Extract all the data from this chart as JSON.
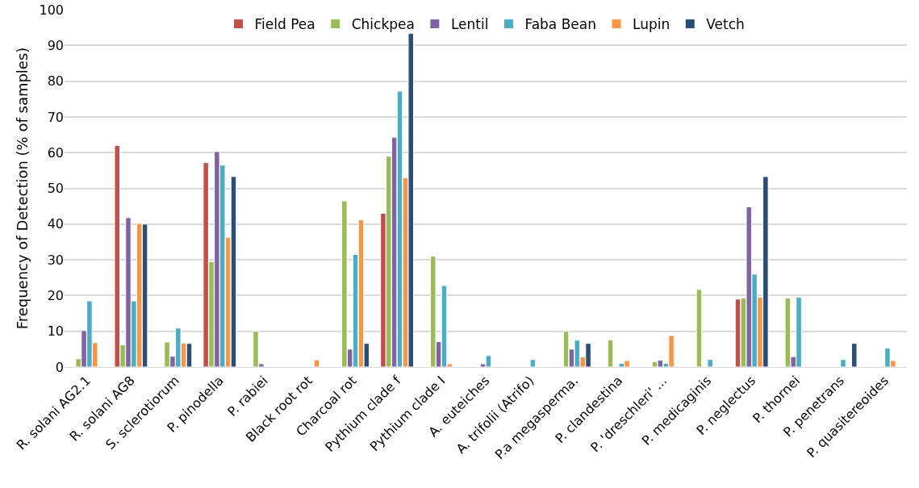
{
  "chart_data": {
    "type": "bar",
    "ylabel": "Frequency of Detection (% of samples)",
    "categories": [
      "R. solani AG2.1",
      "R. solani AG8",
      "S. sclerotiorum",
      "P. pinodella",
      "P. rabiei",
      "Black root rot",
      "Charcoal rot",
      "Pythium clade f",
      "Pythium clade I",
      "A. euteiches",
      "A. trifolii (Atrifo)",
      "P.a megasperma.",
      "P. clandestina",
      "P. 'dreschleri' ...",
      "P. medicaginis",
      "P. neglectus",
      "P. thornei",
      "P. penetrans",
      "P. quasitereoides"
    ],
    "series": [
      {
        "name": "Field Pea",
        "color": "#c0504d",
        "values": [
          null,
          62,
          null,
          57.2,
          null,
          null,
          null,
          43,
          null,
          null,
          null,
          null,
          null,
          null,
          null,
          19,
          null,
          null,
          null
        ]
      },
      {
        "name": "Chickpea",
        "color": "#9bbb59",
        "values": [
          2.3,
          6.2,
          7,
          29.5,
          10,
          null,
          46.5,
          59,
          31,
          null,
          null,
          10,
          7.6,
          1.5,
          21.7,
          19.3,
          19.3,
          null,
          null
        ]
      },
      {
        "name": "Lentil",
        "color": "#8064a2",
        "values": [
          10.2,
          41.8,
          3,
          60.3,
          0.9,
          null,
          5,
          64.3,
          7.1,
          0.9,
          null,
          5,
          null,
          1.9,
          null,
          44.8,
          2.9,
          null,
          null
        ]
      },
      {
        "name": "Faba Bean",
        "color": "#4bacc6",
        "values": [
          18.5,
          18.5,
          10.9,
          56.5,
          null,
          null,
          31.5,
          77.2,
          22.8,
          3.2,
          2.1,
          7.5,
          1,
          1,
          2.1,
          26,
          19.5,
          2.1,
          5.3
        ]
      },
      {
        "name": "Lupin",
        "color": "#f79646",
        "values": [
          6.8,
          40.2,
          6.7,
          36.3,
          null,
          2,
          41.2,
          53,
          0.9,
          null,
          null,
          2.8,
          1.8,
          8.8,
          null,
          19.5,
          null,
          null,
          1.8
        ]
      },
      {
        "name": "Vetch",
        "color": "#2c4d75",
        "values": [
          null,
          40,
          6.6,
          53.3,
          null,
          null,
          6.6,
          93.4,
          null,
          null,
          null,
          6.6,
          null,
          null,
          null,
          53.3,
          null,
          6.6,
          null
        ]
      }
    ],
    "ylim": [
      0,
      100
    ],
    "yticks": [
      0,
      10,
      20,
      30,
      40,
      50,
      60,
      70,
      80,
      90,
      100
    ],
    "grid": "y",
    "legend": "top"
  }
}
